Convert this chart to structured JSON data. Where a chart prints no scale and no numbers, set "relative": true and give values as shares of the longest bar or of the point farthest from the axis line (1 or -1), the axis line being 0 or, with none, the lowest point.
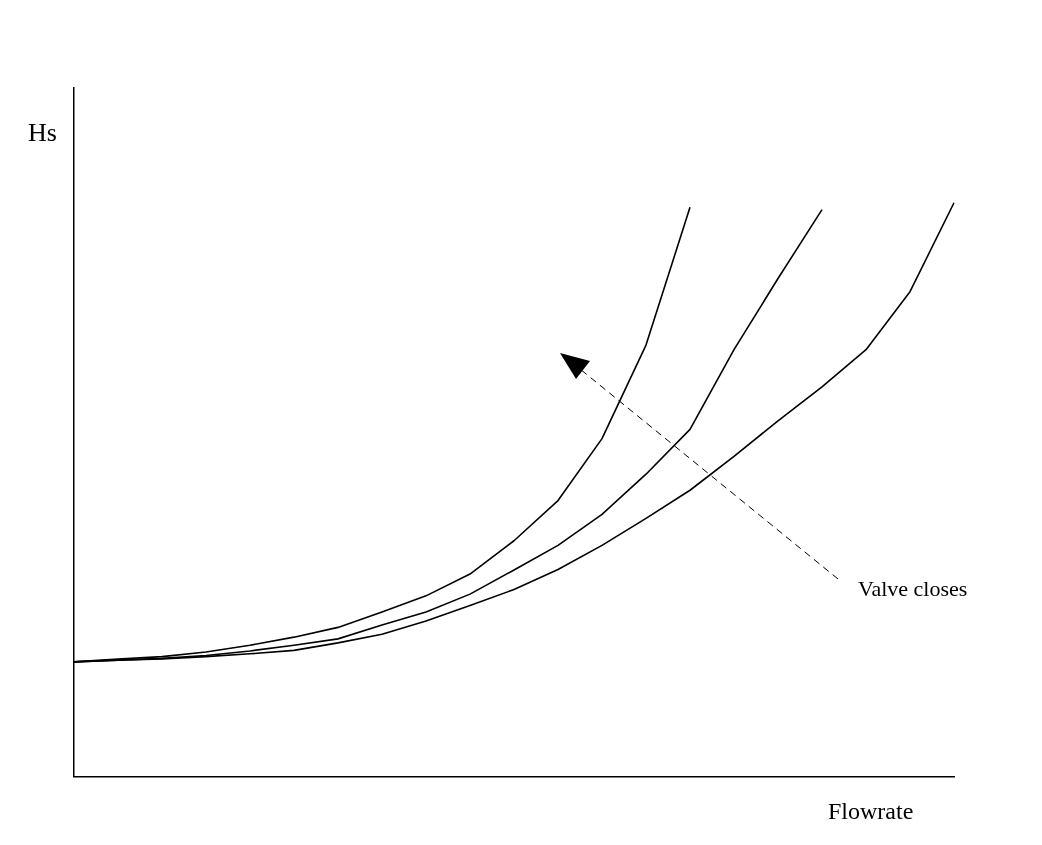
{
  "chart_data": {
    "type": "line",
    "relative": true,
    "xlabel": "Flowrate",
    "ylabel": "Hs",
    "grid": false,
    "legend": false,
    "marker": "none",
    "line_style": "solid",
    "annotations": [
      "Valve closes"
    ],
    "categories": [
      null,
      null,
      null,
      null,
      null,
      null,
      null,
      null,
      null,
      null,
      null,
      null,
      null,
      null,
      null,
      null,
      null,
      null,
      null,
      null,
      null
    ],
    "series": [
      {
        "color": "#000000",
        "values": [
          0.2,
          0.205,
          0.209,
          0.217,
          0.229,
          0.243,
          0.26,
          0.287,
          0.315,
          0.353,
          0.411,
          0.481,
          0.589,
          0.752,
          0.992,
          null,
          null,
          null,
          null,
          null,
          null
        ]
      },
      {
        "color": "#000000",
        "values": [
          0.2,
          0.203,
          0.206,
          0.211,
          0.219,
          0.229,
          0.24,
          0.264,
          0.287,
          0.318,
          0.36,
          0.403,
          0.457,
          0.527,
          0.605,
          0.744,
          0.868,
          0.988,
          null,
          null,
          null
        ]
      },
      {
        "color": "#000000",
        "values": [
          0.2,
          0.203,
          0.205,
          0.209,
          0.214,
          0.22,
          0.233,
          0.248,
          0.271,
          0.298,
          0.326,
          0.361,
          0.403,
          0.45,
          0.499,
          0.558,
          0.62,
          0.679,
          0.744,
          0.845,
          1
        ]
      }
    ]
  }
}
